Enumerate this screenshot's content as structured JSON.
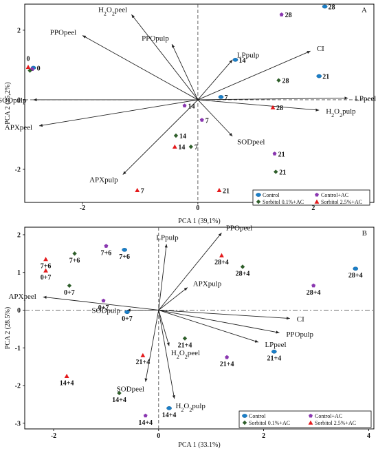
{
  "colors": {
    "Control": "#1a7fc8",
    "Control+AC": "#8a37b0",
    "Sorbitol 0.1%+AC": "#2e5e2a",
    "Sorbitol 2.5%+AC": "#e41a1c"
  },
  "legend_order": [
    "Control",
    "Control+AC",
    "Sorbitol 0.1%+AC",
    "Sorbitol 2.5%+AC"
  ],
  "chart_data": [
    {
      "type": "scatter",
      "panel": "A",
      "xlabel": "PCA 1 (39,1%)",
      "ylabel": "PCA 2 (25,2%)",
      "xlim": [
        -3.0,
        3.05
      ],
      "ylim": [
        -2.95,
        2.75
      ],
      "xticks": [
        -2,
        0,
        2
      ],
      "yticks": [
        -2,
        0,
        2
      ],
      "loadings": [
        {
          "label": "H2O2peel",
          "x": -1.15,
          "y": 2.45
        },
        {
          "label": "PPOpeel",
          "x": -2.0,
          "y": 1.85
        },
        {
          "label": "PPOpulp",
          "x": -0.45,
          "y": 1.6
        },
        {
          "label": "LPpulp",
          "x": 0.6,
          "y": 1.15
        },
        {
          "label": "CI",
          "x": 1.95,
          "y": 1.4
        },
        {
          "label": "LPpeel",
          "x": 2.6,
          "y": 0.05
        },
        {
          "label": "H2O2pulp",
          "x": 2.1,
          "y": -0.3
        },
        {
          "label": "SODpulp",
          "x": -2.85,
          "y": 0.0
        },
        {
          "label": "APXpeel",
          "x": -2.75,
          "y": -0.75
        },
        {
          "label": "SODpeel",
          "x": 0.6,
          "y": -1.05
        },
        {
          "label": "APXpulp",
          "x": -1.3,
          "y": -2.15
        }
      ],
      "series": [
        {
          "name": "Control",
          "points": [
            {
              "x": -2.85,
              "y": 0.92,
              "label": "0"
            },
            {
              "x": 0.4,
              "y": 0.08,
              "label": "7"
            },
            {
              "x": 0.65,
              "y": 1.15,
              "label": "14"
            },
            {
              "x": 2.1,
              "y": 0.68,
              "label": "21"
            },
            {
              "x": 2.2,
              "y": 2.68,
              "label": "28"
            }
          ]
        },
        {
          "name": "Control+AC",
          "points": [
            {
              "x": -2.87,
              "y": 0.88,
              "label": ""
            },
            {
              "x": 0.07,
              "y": -0.58,
              "label": "7"
            },
            {
              "x": -0.23,
              "y": -0.17,
              "label": "14"
            },
            {
              "x": 1.33,
              "y": -1.55,
              "label": "21"
            },
            {
              "x": 1.45,
              "y": 2.45,
              "label": "28"
            }
          ]
        },
        {
          "name": "Sorbitol 0.1%+AC",
          "points": [
            {
              "x": -2.91,
              "y": 0.84,
              "label": ""
            },
            {
              "x": -0.12,
              "y": -1.35,
              "label": "7"
            },
            {
              "x": -0.38,
              "y": -1.03,
              "label": "14"
            },
            {
              "x": 1.35,
              "y": -2.07,
              "label": "21"
            },
            {
              "x": 1.4,
              "y": 0.56,
              "label": "28"
            }
          ]
        },
        {
          "name": "Sorbitol 2.5%+AC",
          "points": [
            {
              "x": -2.94,
              "y": 0.94,
              "label": ""
            },
            {
              "x": -1.05,
              "y": -2.6,
              "label": "7"
            },
            {
              "x": -0.4,
              "y": -1.35,
              "label": "14"
            },
            {
              "x": 0.37,
              "y": -2.6,
              "label": "21"
            },
            {
              "x": 1.3,
              "y": -0.22,
              "label": "28"
            }
          ]
        }
      ],
      "labels_extra": [
        {
          "text": "0",
          "x": -2.97,
          "y": 1.12
        }
      ],
      "legend": "bottom-right"
    },
    {
      "type": "scatter",
      "panel": "B",
      "xlabel": "PCA 1 (33.1%)",
      "ylabel": "PCA 2 (28.5%)",
      "xlim": [
        -2.55,
        4.1
      ],
      "ylim": [
        -3.15,
        2.2
      ],
      "xticks": [
        -2,
        0,
        2,
        4
      ],
      "yticks": [
        -3,
        -2,
        -1,
        0,
        1,
        2
      ],
      "loadings": [
        {
          "label": "LPpulp",
          "x": 0.15,
          "y": 1.75
        },
        {
          "label": "PPOpeel",
          "x": 1.2,
          "y": 2.05
        },
        {
          "label": "APXpulp",
          "x": 0.55,
          "y": 0.6
        },
        {
          "label": "APXpeel",
          "x": -2.2,
          "y": 0.35
        },
        {
          "label": "SODpulp",
          "x": -0.6,
          "y": 0.0
        },
        {
          "label": "CI",
          "x": 2.5,
          "y": -0.22
        },
        {
          "label": "PPOpulp",
          "x": 2.3,
          "y": -0.6
        },
        {
          "label": "LPpeel",
          "x": 1.9,
          "y": -0.85
        },
        {
          "label": "H2O2peel",
          "x": 0.2,
          "y": -0.95
        },
        {
          "label": "SODpeel",
          "x": -0.25,
          "y": -1.9
        },
        {
          "label": "H2O2pulp",
          "x": 0.3,
          "y": -2.35
        }
      ],
      "series": [
        {
          "name": "Control",
          "points": [
            {
              "x": -0.65,
              "y": 1.6,
              "label": "7+6"
            },
            {
              "x": -0.6,
              "y": -0.05,
              "label": "0+7"
            },
            {
              "x": 2.2,
              "y": -1.1,
              "label": "21+4"
            },
            {
              "x": 3.75,
              "y": 1.1,
              "label": "28+4"
            },
            {
              "x": 0.2,
              "y": -2.6,
              "label": "14+4"
            }
          ]
        },
        {
          "name": "Control+AC",
          "points": [
            {
              "x": -1.0,
              "y": 1.7,
              "label": "7+6"
            },
            {
              "x": -1.05,
              "y": 0.25,
              "label": "0+7"
            },
            {
              "x": 2.95,
              "y": 0.65,
              "label": "28+4"
            },
            {
              "x": 1.3,
              "y": -1.25,
              "label": "21+4"
            },
            {
              "x": -0.25,
              "y": -2.8,
              "label": "14+4"
            }
          ]
        },
        {
          "name": "Sorbitol 0.1%+AC",
          "points": [
            {
              "x": -1.6,
              "y": 1.5,
              "label": "7+6"
            },
            {
              "x": -1.7,
              "y": 0.65,
              "label": "0+7"
            },
            {
              "x": 1.6,
              "y": 1.15,
              "label": "28+4"
            },
            {
              "x": 0.5,
              "y": -0.75,
              "label": "21+4"
            },
            {
              "x": -0.75,
              "y": -2.2,
              "label": "14+4"
            }
          ]
        },
        {
          "name": "Sorbitol 2.5%+AC",
          "points": [
            {
              "x": -2.15,
              "y": 1.35,
              "label": "7+6"
            },
            {
              "x": -2.15,
              "y": 1.05,
              "label": "0+7"
            },
            {
              "x": 1.2,
              "y": 1.45,
              "label": "28+4"
            },
            {
              "x": -0.3,
              "y": -1.2,
              "label": "21+4"
            },
            {
              "x": -1.75,
              "y": -1.75,
              "label": "14+4"
            }
          ]
        }
      ],
      "legend": "bottom-right"
    }
  ]
}
